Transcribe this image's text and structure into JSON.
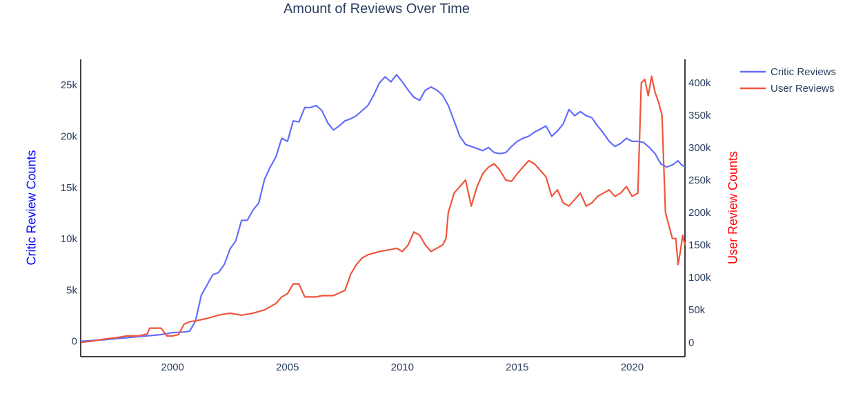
{
  "title": "Amount of Reviews Over Time",
  "chart_data": {
    "type": "line",
    "title": "Amount of Reviews Over Time",
    "xlabel": "",
    "ylabel": "Critic Review Counts",
    "ylabel_right": "User Review Counts",
    "x_ticks": [
      "2000",
      "2005",
      "2010",
      "2015",
      "2020"
    ],
    "y_ticks": [
      "0",
      "5k",
      "10k",
      "15k",
      "20k",
      "25k"
    ],
    "y2_ticks": [
      "0",
      "50k",
      "100k",
      "150k",
      "200k",
      "250k",
      "300k",
      "350k",
      "400k"
    ],
    "xlim": [
      1996.0,
      2022.3
    ],
    "ylim": [
      -1500,
      27500
    ],
    "y2lim": [
      -22000,
      436000
    ],
    "grid": false,
    "legend_position": "top-right",
    "colors": {
      "title": "#2a3f5f",
      "axis_text": "#2a3f5f",
      "left_label": "#0000ff",
      "right_label": "#ff0000"
    },
    "series": [
      {
        "name": "Critic Reviews",
        "axis": "left",
        "color": "#636efa",
        "x": [
          1996.0,
          1997.0,
          1998.0,
          1999.0,
          1999.5,
          2000.0,
          2000.5,
          2000.75,
          2001.0,
          2001.25,
          2001.5,
          2001.75,
          2002.0,
          2002.25,
          2002.5,
          2002.75,
          2003.0,
          2003.25,
          2003.5,
          2003.75,
          2004.0,
          2004.25,
          2004.5,
          2004.75,
          2005.0,
          2005.25,
          2005.5,
          2005.75,
          2006.0,
          2006.25,
          2006.5,
          2006.75,
          2007.0,
          2007.25,
          2007.5,
          2007.75,
          2008.0,
          2008.25,
          2008.5,
          2008.75,
          2009.0,
          2009.25,
          2009.5,
          2009.75,
          2010.0,
          2010.25,
          2010.5,
          2010.75,
          2011.0,
          2011.25,
          2011.5,
          2011.75,
          2012.0,
          2012.25,
          2012.5,
          2012.75,
          2013.0,
          2013.25,
          2013.5,
          2013.75,
          2014.0,
          2014.25,
          2014.5,
          2014.75,
          2015.0,
          2015.25,
          2015.5,
          2015.75,
          2016.0,
          2016.25,
          2016.5,
          2016.75,
          2017.0,
          2017.25,
          2017.5,
          2017.75,
          2018.0,
          2018.25,
          2018.5,
          2018.75,
          2019.0,
          2019.25,
          2019.5,
          2019.75,
          2020.0,
          2020.25,
          2020.5,
          2020.75,
          2021.0,
          2021.25,
          2021.5,
          2021.75,
          2022.0,
          2022.15,
          2022.3
        ],
        "values": [
          0,
          150,
          350,
          550,
          650,
          850,
          900,
          1000,
          2000,
          4500,
          5500,
          6500,
          6700,
          7500,
          9000,
          9800,
          11800,
          11800,
          12800,
          13500,
          15800,
          17000,
          18000,
          19800,
          19500,
          21500,
          21400,
          22800,
          22800,
          23000,
          22500,
          21300,
          20600,
          21000,
          21500,
          21700,
          22000,
          22500,
          23000,
          24000,
          25200,
          25800,
          25300,
          26000,
          25300,
          24500,
          23800,
          23500,
          24500,
          24800,
          24500,
          24000,
          23000,
          21500,
          20000,
          19200,
          19000,
          18800,
          18600,
          18900,
          18400,
          18300,
          18400,
          19000,
          19500,
          19800,
          20000,
          20400,
          20700,
          21000,
          20000,
          20500,
          21200,
          22600,
          22000,
          22400,
          22000,
          21800,
          21000,
          20300,
          19500,
          19000,
          19300,
          19800,
          19500,
          19500,
          19400,
          18900,
          18300,
          17300,
          17000,
          17200,
          17600,
          17200,
          17000
        ]
      },
      {
        "name": "User Reviews",
        "axis": "right",
        "color": "#ef553b",
        "x": [
          1996.0,
          1996.5,
          1997.0,
          1997.5,
          1998.0,
          1998.5,
          1998.9,
          1999.0,
          1999.5,
          1999.75,
          2000.0,
          2000.25,
          2000.5,
          2000.75,
          2001.0,
          2001.5,
          2002.0,
          2002.5,
          2003.0,
          2003.5,
          2004.0,
          2004.5,
          2004.75,
          2005.0,
          2005.25,
          2005.5,
          2005.75,
          2006.0,
          2006.25,
          2006.5,
          2007.0,
          2007.5,
          2007.75,
          2008.0,
          2008.25,
          2008.5,
          2009.0,
          2009.5,
          2009.75,
          2010.0,
          2010.25,
          2010.5,
          2010.75,
          2011.0,
          2011.25,
          2011.5,
          2011.75,
          2011.9,
          2012.0,
          2012.25,
          2012.5,
          2012.75,
          2013.0,
          2013.25,
          2013.5,
          2013.75,
          2014.0,
          2014.25,
          2014.5,
          2014.75,
          2015.0,
          2015.25,
          2015.5,
          2015.75,
          2016.0,
          2016.25,
          2016.5,
          2016.75,
          2017.0,
          2017.25,
          2017.5,
          2017.75,
          2018.0,
          2018.25,
          2018.5,
          2018.75,
          2019.0,
          2019.25,
          2019.5,
          2019.75,
          2020.0,
          2020.25,
          2020.4,
          2020.55,
          2020.7,
          2020.85,
          2021.0,
          2021.15,
          2021.3,
          2021.45,
          2021.6,
          2021.75,
          2021.9,
          2022.0,
          2022.1,
          2022.2,
          2022.3
        ],
        "values": [
          0,
          2000,
          5000,
          7000,
          10000,
          10000,
          13000,
          22000,
          22000,
          10000,
          10000,
          12000,
          28000,
          32000,
          33000,
          37000,
          42000,
          45000,
          42000,
          45000,
          50000,
          60000,
          70000,
          75000,
          90000,
          90000,
          70000,
          70000,
          70000,
          72000,
          72000,
          80000,
          105000,
          120000,
          130000,
          135000,
          140000,
          143000,
          145000,
          140000,
          150000,
          170000,
          165000,
          150000,
          140000,
          145000,
          150000,
          160000,
          200000,
          230000,
          240000,
          250000,
          210000,
          240000,
          260000,
          270000,
          275000,
          265000,
          250000,
          248000,
          260000,
          270000,
          280000,
          275000,
          265000,
          255000,
          225000,
          235000,
          215000,
          210000,
          220000,
          230000,
          210000,
          215000,
          225000,
          230000,
          235000,
          225000,
          230000,
          240000,
          225000,
          230000,
          400000,
          405000,
          380000,
          410000,
          385000,
          370000,
          350000,
          200000,
          180000,
          160000,
          160000,
          120000,
          140000,
          165000,
          150000
        ]
      }
    ]
  }
}
